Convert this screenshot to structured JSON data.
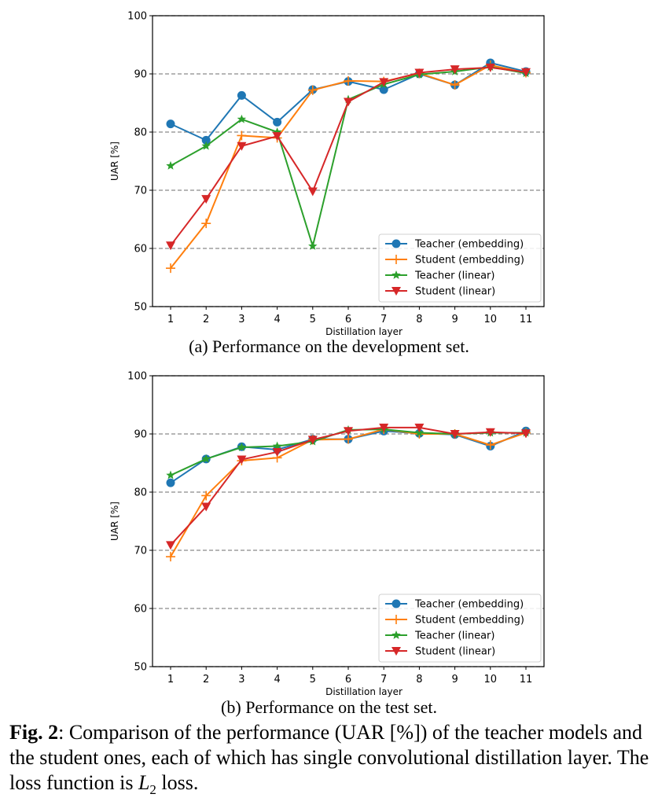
{
  "chart_data": [
    {
      "type": "line",
      "title": "",
      "subcaption": "(a) Performance on the development set.",
      "xlabel": "Distillation layer",
      "ylabel": "UAR [%]",
      "x": [
        1,
        2,
        3,
        4,
        5,
        6,
        7,
        8,
        9,
        10,
        11
      ],
      "xticks": [
        "1",
        "2",
        "3",
        "4",
        "5",
        "6",
        "7",
        "8",
        "9",
        "10",
        "11"
      ],
      "ylim": [
        50,
        100
      ],
      "yticks": [
        "50",
        "60",
        "70",
        "80",
        "90",
        "100"
      ],
      "grid": "horizontal dashed",
      "legend_position": "lower-right",
      "series": [
        {
          "name": "Teacher (embedding)",
          "color": "#1f77b4",
          "marker": "circle",
          "values": [
            81.4,
            78.6,
            86.3,
            81.7,
            87.3,
            88.7,
            87.3,
            90.0,
            88.1,
            91.9,
            90.4
          ]
        },
        {
          "name": "Student (embedding)",
          "color": "#ff7f0e",
          "marker": "plus",
          "values": [
            56.6,
            64.3,
            79.4,
            79.0,
            87.2,
            88.8,
            88.7,
            90.1,
            88.1,
            91.5,
            90.2
          ]
        },
        {
          "name": "Teacher (linear)",
          "color": "#2ca02c",
          "marker": "star",
          "values": [
            74.2,
            77.6,
            82.2,
            80.0,
            60.4,
            85.6,
            88.2,
            89.9,
            90.4,
            91.2,
            90.1
          ]
        },
        {
          "name": "Student (linear)",
          "color": "#d62728",
          "marker": "triangle-down",
          "values": [
            60.5,
            68.5,
            77.6,
            79.3,
            69.8,
            85.2,
            88.6,
            90.2,
            90.8,
            91.1,
            90.3
          ]
        }
      ]
    },
    {
      "type": "line",
      "title": "",
      "subcaption": "(b) Performance on the test set.",
      "xlabel": "Distillation layer",
      "ylabel": "UAR [%]",
      "x": [
        1,
        2,
        3,
        4,
        5,
        6,
        7,
        8,
        9,
        10,
        11
      ],
      "xticks": [
        "1",
        "2",
        "3",
        "4",
        "5",
        "6",
        "7",
        "8",
        "9",
        "10",
        "11"
      ],
      "ylim": [
        50,
        100
      ],
      "yticks": [
        "50",
        "60",
        "70",
        "80",
        "90",
        "100"
      ],
      "grid": "horizontal dashed",
      "legend_position": "lower-right",
      "series": [
        {
          "name": "Teacher (embedding)",
          "color": "#1f77b4",
          "marker": "circle",
          "values": [
            81.6,
            85.7,
            87.8,
            87.3,
            89.1,
            89.1,
            90.5,
            90.1,
            89.9,
            87.9,
            90.5
          ]
        },
        {
          "name": "Student (embedding)",
          "color": "#ff7f0e",
          "marker": "plus",
          "values": [
            68.9,
            79.4,
            85.4,
            85.9,
            89.0,
            89.1,
            90.8,
            90.0,
            90.0,
            88.1,
            90.2
          ]
        },
        {
          "name": "Teacher (linear)",
          "color": "#2ca02c",
          "marker": "star",
          "values": [
            82.9,
            85.7,
            87.7,
            87.9,
            88.7,
            90.7,
            90.8,
            90.2,
            90.0,
            90.2,
            90.2
          ]
        },
        {
          "name": "Student (linear)",
          "color": "#d62728",
          "marker": "triangle-down",
          "values": [
            70.9,
            77.5,
            85.6,
            86.9,
            89.0,
            90.5,
            91.1,
            91.1,
            90.0,
            90.3,
            90.1
          ]
        }
      ]
    }
  ],
  "caption": {
    "label": "Fig. 2",
    "text_before_math": ": Comparison of the performance (UAR [%]) of the teacher models and the student ones, each of which has single convolutional distillation layer. The loss function is ",
    "math_var": "L",
    "math_sub": "2",
    "text_after_math": " loss."
  }
}
